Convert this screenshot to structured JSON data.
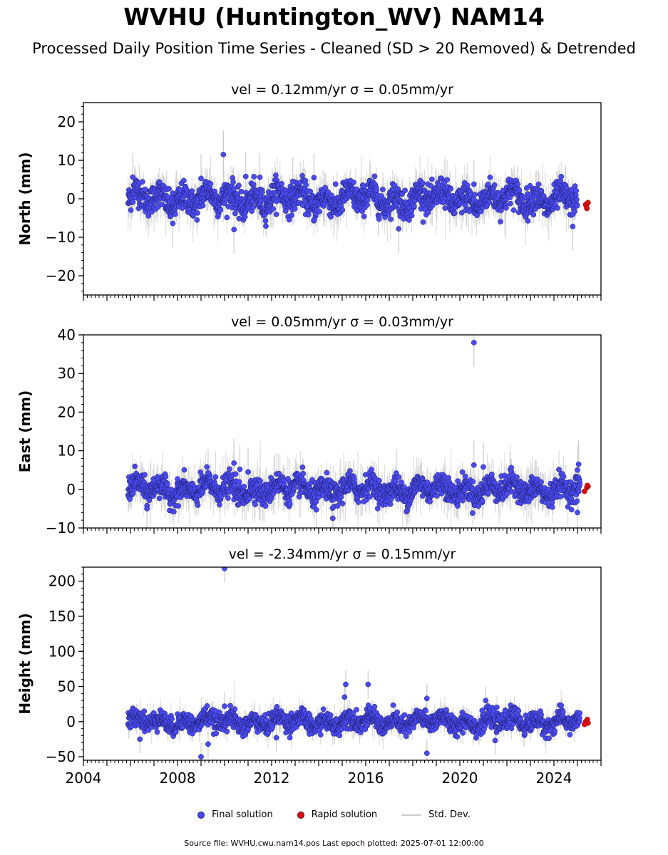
{
  "figure": {
    "title": "WVHU (Huntington_WV) NAM14",
    "subtitle": "Processed Daily Position Time Series - Cleaned (SD > 20 Removed) & Detrended",
    "source_text": "Source file: WVHU.cwu.nam14.pos  Last epoch plotted: 2025-07-01 12:00:00"
  },
  "legend": {
    "final_label": "Final solution",
    "rapid_label": "Rapid solution",
    "std_label": "Std. Dev."
  },
  "colors": {
    "final_fill": "#4a4af0",
    "final_edge": "#1a1a60",
    "rapid_fill": "#e01010",
    "std_line": "#cccccc"
  },
  "chart_data": [
    {
      "type": "scatter",
      "title": "vel = 0.12mm/yr   σ = 0.05mm/yr",
      "ylabel": "North (mm)",
      "xlim": [
        2004.0,
        2026.0
      ],
      "ylim": [
        -25,
        25
      ],
      "yticks": [
        -20,
        -10,
        0,
        10,
        20
      ],
      "noise_sd": 1.8,
      "error_sd": 2.5,
      "data_start": 2005.9,
      "data_end": 2025.0,
      "outliers": [
        {
          "x": 2009.95,
          "y": 11.5
        },
        {
          "x": 2006.1,
          "y": 5.6
        },
        {
          "x": 2010.9,
          "y": 5.8
        },
        {
          "x": 2011.5,
          "y": 5.6
        },
        {
          "x": 2013.8,
          "y": 5.5
        },
        {
          "x": 2012.9,
          "y": 4.5
        },
        {
          "x": 2010.4,
          "y": -8.0
        },
        {
          "x": 2017.4,
          "y": -7.8
        },
        {
          "x": 2024.8,
          "y": -7.2
        },
        {
          "x": 2007.8,
          "y": -6.4
        },
        {
          "x": 2009.0,
          "y": 5.3
        },
        {
          "x": 2020.6,
          "y": 3.8
        }
      ],
      "rapid": {
        "x": [
          2025.35,
          2025.4,
          2025.45,
          2025.38
        ],
        "y": [
          -1.5,
          -2.5,
          -1.0,
          -2.0
        ]
      }
    },
    {
      "type": "scatter",
      "title": "vel = 0.05mm/yr   σ = 0.03mm/yr",
      "ylabel": "East (mm)",
      "xlim": [
        2004.0,
        2026.0
      ],
      "ylim": [
        -10,
        40
      ],
      "yticks": [
        -10,
        0,
        10,
        20,
        30,
        40
      ],
      "noise_sd": 1.5,
      "error_sd": 2.5,
      "data_start": 2005.9,
      "data_end": 2025.1,
      "outliers": [
        {
          "x": 2020.6,
          "y": 38.0
        },
        {
          "x": 2020.6,
          "y": 6.3
        },
        {
          "x": 2010.4,
          "y": 6.8
        },
        {
          "x": 2010.65,
          "y": 5.2
        },
        {
          "x": 2021.0,
          "y": 5.8
        },
        {
          "x": 2009.3,
          "y": 4.3
        },
        {
          "x": 2011.0,
          "y": 4.5
        },
        {
          "x": 2017.3,
          "y": 4.2
        },
        {
          "x": 2025.05,
          "y": 6.5
        },
        {
          "x": 2025.0,
          "y": 5.0
        },
        {
          "x": 2014.6,
          "y": -7.5
        },
        {
          "x": 2013.9,
          "y": -5.3
        },
        {
          "x": 2006.7,
          "y": -5.0
        },
        {
          "x": 2025.0,
          "y": -6.0
        }
      ],
      "rapid": {
        "x": [
          2025.4,
          2025.45,
          2025.42,
          2025.3
        ],
        "y": [
          0.5,
          0.8,
          1.0,
          -0.5
        ]
      }
    },
    {
      "type": "scatter",
      "title": "vel = -2.34mm/yr   σ = 0.15mm/yr",
      "ylabel": "Height (mm)",
      "xlim": [
        2004.0,
        2026.0
      ],
      "ylim": [
        -55,
        220
      ],
      "yticks": [
        -50,
        0,
        50,
        100,
        150,
        200
      ],
      "noise_sd": 6.5,
      "error_sd": 8,
      "data_start": 2005.9,
      "data_end": 2025.1,
      "outliers": [
        {
          "x": 2010.0,
          "y": 218
        },
        {
          "x": 2015.15,
          "y": 53
        },
        {
          "x": 2016.1,
          "y": 53
        },
        {
          "x": 2015.1,
          "y": 35
        },
        {
          "x": 2018.6,
          "y": 33
        },
        {
          "x": 2021.1,
          "y": 30
        },
        {
          "x": 2010.0,
          "y": 22
        },
        {
          "x": 2009.0,
          "y": -50
        },
        {
          "x": 2018.6,
          "y": -45
        },
        {
          "x": 2009.3,
          "y": -32
        },
        {
          "x": 2012.2,
          "y": -23
        },
        {
          "x": 2006.4,
          "y": -25
        },
        {
          "x": 2021.5,
          "y": -27
        }
      ],
      "rapid": {
        "x": [
          2025.35,
          2025.42,
          2025.45,
          2025.3
        ],
        "y": [
          0,
          3,
          -2,
          -4
        ]
      },
      "xticks": [
        2004,
        2008,
        2012,
        2016,
        2020,
        2024
      ],
      "show_xtick_labels": true
    }
  ]
}
